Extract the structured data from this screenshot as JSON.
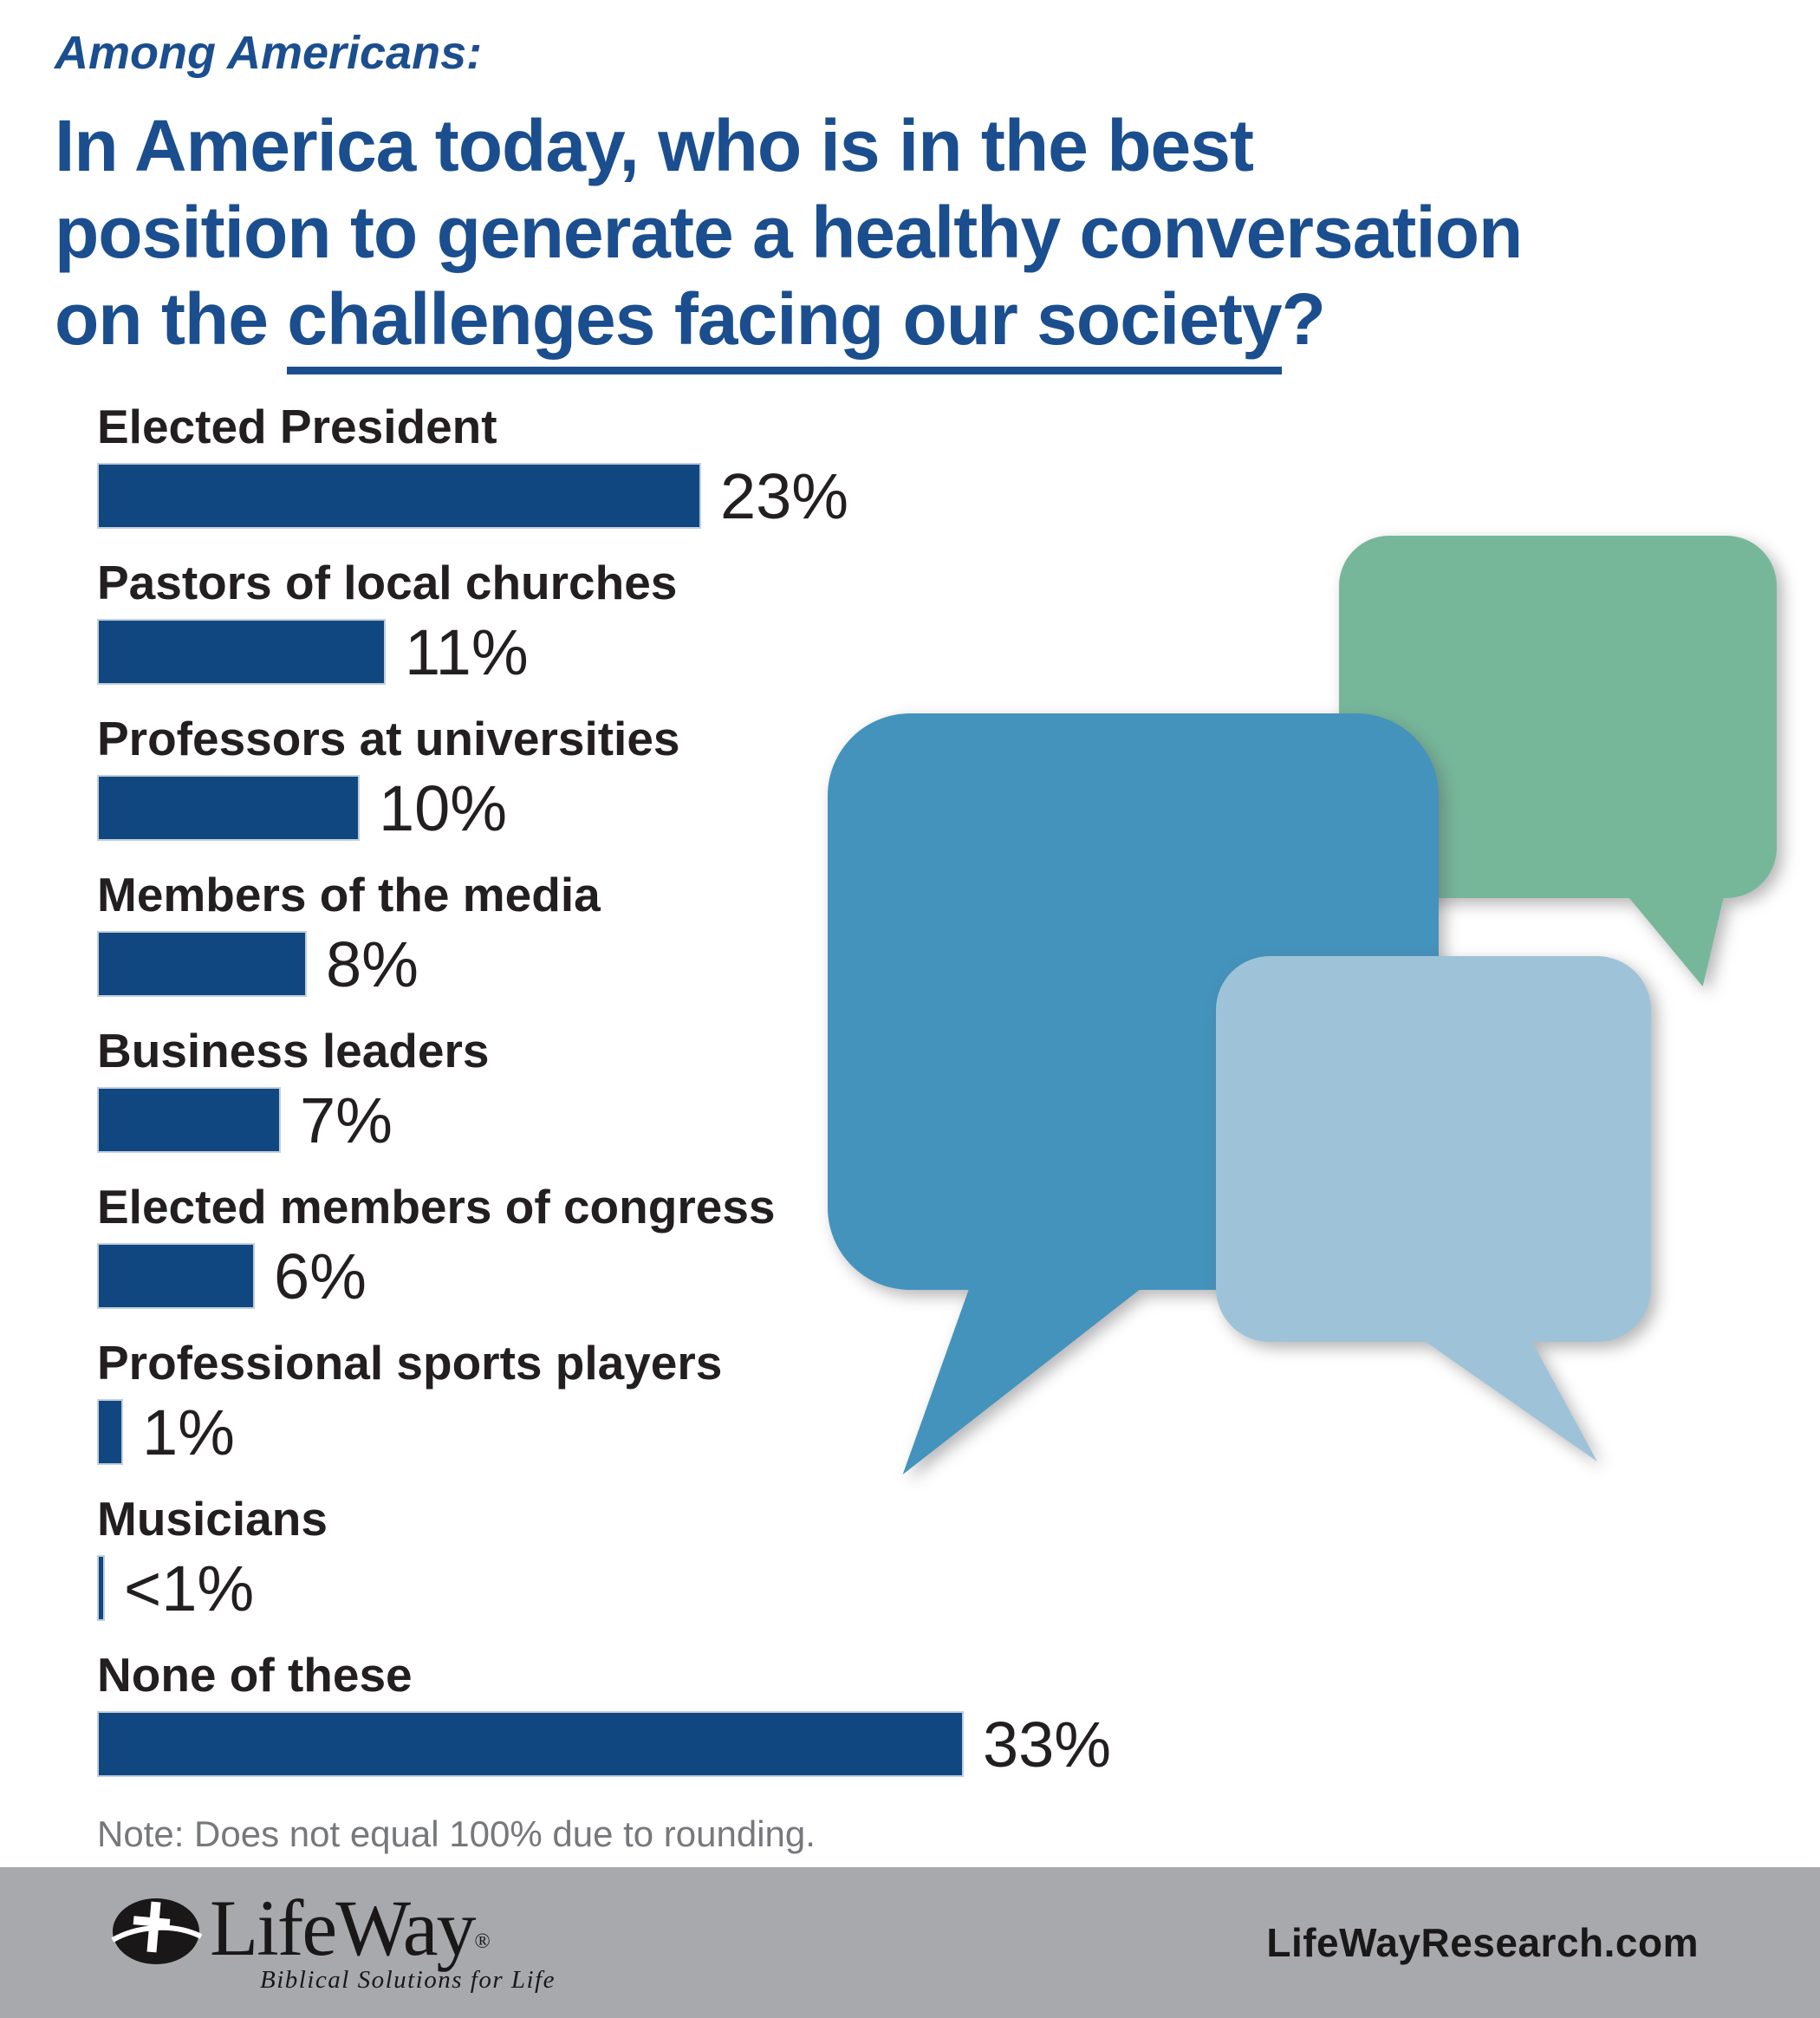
{
  "header": {
    "kicker": "Among Americans:",
    "title_lines": [
      "In America today, who is in the best",
      "position to generate a healthy conversation"
    ],
    "title_line3": {
      "prefix": "on the ",
      "underlined": "challenges facing our society",
      "suffix": "?"
    }
  },
  "chart_data": {
    "type": "bar",
    "orientation": "horizontal",
    "title": "In America today, who is in the best position to generate a healthy conversation on the challenges facing our society?",
    "categories": [
      "Elected President",
      "Pastors of local churches",
      "Professors at universities",
      "Members of the media",
      "Business leaders",
      "Elected members of congress",
      "Professional sports players",
      "Musicians",
      "None of these"
    ],
    "values": [
      23,
      11,
      10,
      8,
      7,
      6,
      1,
      0.3,
      33
    ],
    "value_labels": [
      "23%",
      "11%",
      "10%",
      "8%",
      "7%",
      "6%",
      "1%",
      "<1%",
      "33%"
    ],
    "xlim": [
      0,
      35
    ],
    "grid": false,
    "legend": false,
    "bar_color": "#114780"
  },
  "note": "Note: Does not equal 100% due to rounding.",
  "footer": {
    "logo_text": "LifeWay",
    "logo_reg": "®",
    "logo_tagline": "Biblical Solutions for Life",
    "website": "LifeWayResearch.com"
  },
  "colors": {
    "title_blue": "#1b4e8e",
    "bar_navy": "#114780",
    "bubble_green": "#76b79a",
    "bubble_blue": "#4493bd",
    "bubble_light_blue": "#9ec3d8",
    "footer_gray": "#a7a9ac",
    "note_gray": "#77787b",
    "text_dark": "#231f20"
  },
  "decor": {
    "bubbles": [
      "speech-bubble-green",
      "speech-bubble-blue",
      "speech-bubble-light-blue"
    ]
  }
}
